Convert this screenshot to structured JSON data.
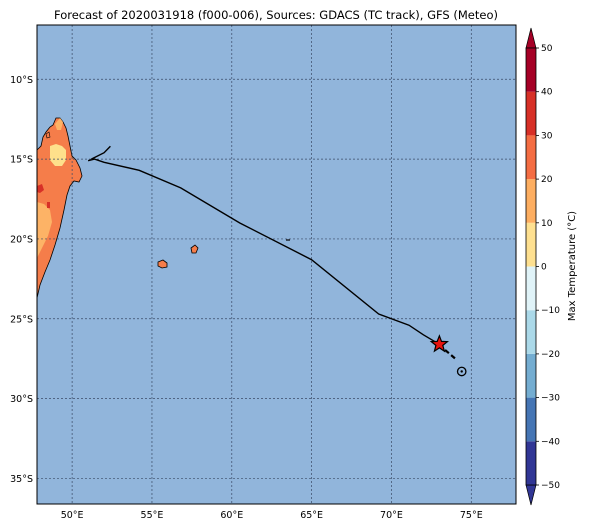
{
  "title": "Forecast of 2020031918 (f000-006), Sources: GDACS (TC track), GFS (Meteo)",
  "map": {
    "lon_range": [
      47.8,
      77.8
    ],
    "lat_range": [
      -36.6,
      -6.6
    ],
    "lon_ticks": [
      {
        "value": 50,
        "label": "50°E"
      },
      {
        "value": 55,
        "label": "55°E"
      },
      {
        "value": 60,
        "label": "60°E"
      },
      {
        "value": 65,
        "label": "65°E"
      },
      {
        "value": 70,
        "label": "70°E"
      },
      {
        "value": 75,
        "label": "75°E"
      }
    ],
    "lat_ticks": [
      {
        "value": -10,
        "label": "10°S"
      },
      {
        "value": -15,
        "label": "15°S"
      },
      {
        "value": -20,
        "label": "20°S"
      },
      {
        "value": -25,
        "label": "25°S"
      },
      {
        "value": -30,
        "label": "30°S"
      },
      {
        "value": -35,
        "label": "35°S"
      }
    ],
    "grid": true,
    "ocean_color": "#91b5db",
    "land_colors": {
      "warm": "#f57d4a",
      "mild": "#fdb366",
      "pale": "#fee08b"
    }
  },
  "track": {
    "past": [
      [
        51.0,
        -15.1
      ],
      [
        51.4,
        -15.0
      ],
      [
        52.0,
        -15.2
      ],
      [
        54.2,
        -15.7
      ],
      [
        56.8,
        -16.8
      ],
      [
        60.5,
        -19.0
      ],
      [
        65.0,
        -21.3
      ],
      [
        69.2,
        -24.7
      ],
      [
        71.1,
        -25.4
      ],
      [
        72.0,
        -26.0
      ],
      [
        73.0,
        -26.6
      ]
    ],
    "current": [
      73.0,
      -26.6
    ],
    "forecast": [
      [
        73.0,
        -26.6
      ],
      [
        73.3,
        -26.9
      ],
      [
        74.0,
        -27.5
      ]
    ],
    "forecast_point": [
      74.4,
      -28.3
    ],
    "extra_segment": [
      [
        51.2,
        -15.0
      ],
      [
        52.0,
        -14.6
      ],
      [
        52.4,
        -14.2
      ]
    ]
  },
  "colorbar": {
    "label": "Max Temperature (°C)",
    "ticks": [
      50,
      40,
      30,
      20,
      10,
      0,
      -10,
      -20,
      -30,
      -40,
      -50
    ],
    "colors": [
      "#313695",
      "#4575b4",
      "#74add1",
      "#abd9e9",
      "#e0f3f8",
      "#ffffbf",
      "#fee090",
      "#fdae61",
      "#f46d43",
      "#d73027",
      "#a50026"
    ]
  }
}
